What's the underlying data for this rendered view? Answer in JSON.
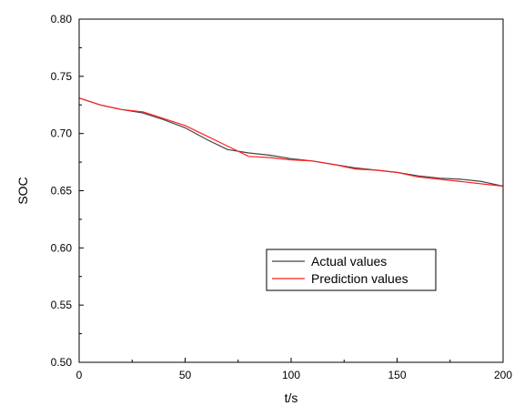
{
  "chart_data": {
    "type": "line",
    "xlabel": "t/s",
    "ylabel": "SOC",
    "xlim": [
      0,
      200
    ],
    "ylim": [
      0.5,
      0.8
    ],
    "xticks": [
      0,
      50,
      100,
      150,
      200
    ],
    "yticks": [
      0.5,
      0.55,
      0.6,
      0.65,
      0.7,
      0.75,
      0.8
    ],
    "xtick_labels": [
      "0",
      "50",
      "100",
      "150",
      "200"
    ],
    "ytick_labels": [
      "0.50",
      "0.55",
      "0.60",
      "0.65",
      "0.70",
      "0.75",
      "0.80"
    ],
    "grid": false,
    "legend_position": "lower-right",
    "series": [
      {
        "name": "Actual values",
        "color": "#444444",
        "x": [
          0,
          10,
          20,
          30,
          40,
          50,
          60,
          70,
          80,
          90,
          100,
          110,
          120,
          130,
          140,
          150,
          160,
          170,
          180,
          190,
          200
        ],
        "y": [
          0.731,
          0.725,
          0.721,
          0.718,
          0.712,
          0.705,
          0.695,
          0.686,
          0.683,
          0.681,
          0.678,
          0.676,
          0.673,
          0.67,
          0.668,
          0.666,
          0.663,
          0.661,
          0.66,
          0.658,
          0.654
        ]
      },
      {
        "name": "Prediction values",
        "color": "#ff2020",
        "x": [
          0,
          10,
          20,
          30,
          40,
          50,
          60,
          70,
          80,
          90,
          100,
          110,
          120,
          130,
          140,
          150,
          160,
          170,
          180,
          190,
          200
        ],
        "y": [
          0.731,
          0.725,
          0.721,
          0.719,
          0.713,
          0.707,
          0.698,
          0.689,
          0.68,
          0.679,
          0.677,
          0.676,
          0.673,
          0.669,
          0.668,
          0.666,
          0.662,
          0.66,
          0.658,
          0.656,
          0.654
        ]
      }
    ]
  }
}
